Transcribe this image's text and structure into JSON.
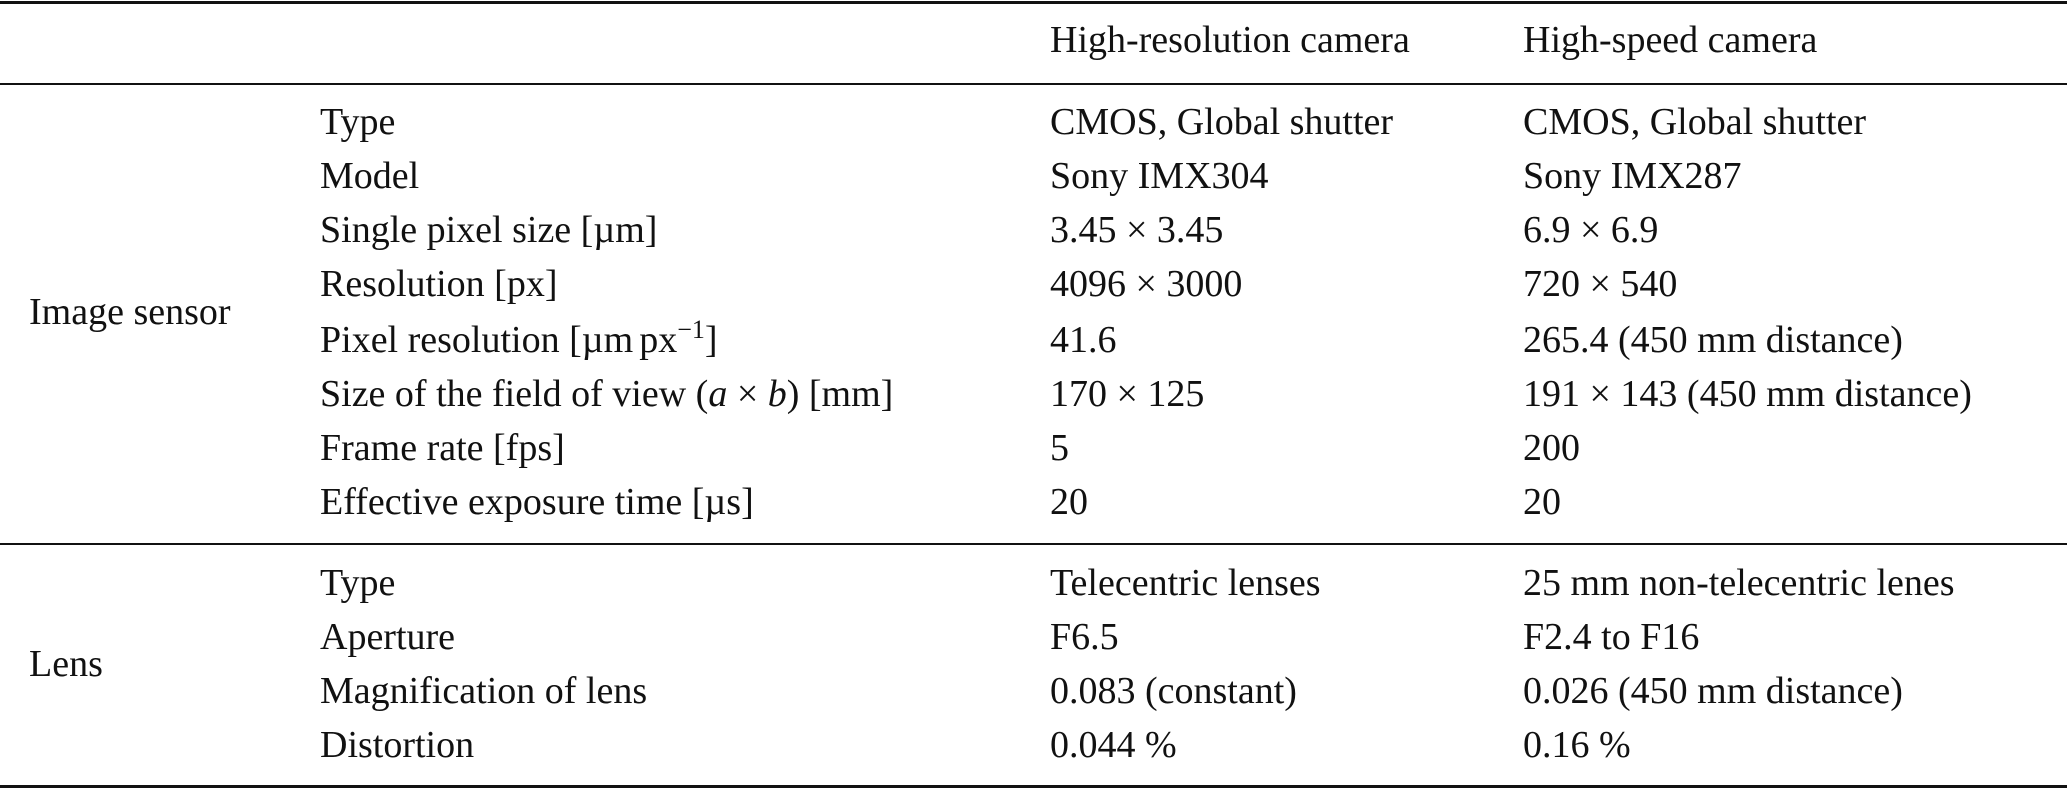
{
  "table": {
    "header": {
      "col_group": "",
      "col_parameter": "",
      "col_high_resolution": "High-resolution camera",
      "col_high_speed": "High-speed camera"
    },
    "sections": [
      {
        "group": "Image sensor",
        "rows": [
          {
            "parameter": "Type",
            "high_resolution": "CMOS, Global shutter",
            "high_speed": "CMOS, Global shutter"
          },
          {
            "parameter": "Model",
            "high_resolution": "Sony IMX304",
            "high_speed": "Sony IMX287"
          },
          {
            "parameter": "Single pixel size [µm]",
            "high_resolution": "3.45 × 3.45",
            "high_speed": "6.9 × 6.9"
          },
          {
            "parameter": "Resolution [px]",
            "high_resolution": "4096 × 3000",
            "high_speed": "720 × 540"
          },
          {
            "parameter": "Pixel resolution [µm px−1]",
            "high_resolution": "41.6",
            "high_speed": "265.4 (450 mm distance)"
          },
          {
            "parameter": "Size of the field of view (a × b) [mm]",
            "high_resolution": "170 × 125",
            "high_speed": "191 × 143 (450 mm distance)"
          },
          {
            "parameter": "Frame rate [fps]",
            "high_resolution": "5",
            "high_speed": "200"
          },
          {
            "parameter": "Effective exposure time [µs]",
            "high_resolution": "20",
            "high_speed": "20"
          }
        ]
      },
      {
        "group": "Lens",
        "rows": [
          {
            "parameter": "Type",
            "high_resolution": "Telecentric lenses",
            "high_speed": "25 mm non-telecentric lenes"
          },
          {
            "parameter": "Aperture",
            "high_resolution": "F6.5",
            "high_speed": "F2.4 to F16"
          },
          {
            "parameter": "Magnification of lens",
            "high_resolution": "0.083 (constant)",
            "high_speed": "0.026 (450 mm distance)"
          },
          {
            "parameter": "Distortion",
            "high_resolution": "0.044 %",
            "high_speed": "0.16 %"
          }
        ]
      }
    ],
    "rich_labels": {
      "pixel_resolution_prefix": "Pixel resolution [µm",
      "pixel_resolution_unit": "px",
      "pixel_resolution_exp": "−1",
      "pixel_resolution_suffix": "]",
      "fov_prefix": "Size of the field of view (",
      "fov_a": "a",
      "fov_times": " × ",
      "fov_b": "b",
      "fov_suffix": ") [mm]"
    }
  }
}
